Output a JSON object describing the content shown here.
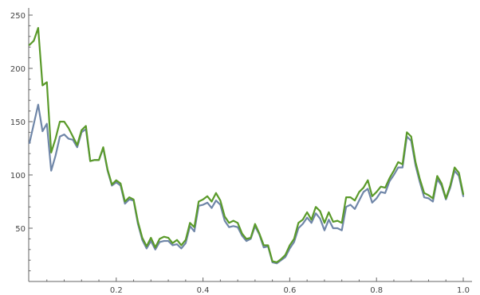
{
  "chart_data": {
    "type": "line",
    "title": "",
    "xlabel": "",
    "ylabel": "",
    "xlim": [
      0,
      1.0
    ],
    "ylim": [
      0,
      250
    ],
    "x_ticks": [
      0.2,
      0.4,
      0.6,
      0.8,
      1.0
    ],
    "x_tick_labels": [
      "0.2",
      "0.4",
      "0.6",
      "0.8",
      "1.0"
    ],
    "y_ticks": [
      50,
      100,
      150,
      200,
      250
    ],
    "y_tick_labels": [
      "50",
      "100",
      "150",
      "200",
      "250"
    ],
    "grid": false,
    "legend": "none",
    "x": [
      0.0,
      0.01,
      0.02,
      0.03,
      0.04,
      0.05,
      0.06,
      0.07,
      0.08,
      0.09,
      0.1,
      0.11,
      0.12,
      0.13,
      0.14,
      0.15,
      0.16,
      0.17,
      0.18,
      0.19,
      0.2,
      0.21,
      0.22,
      0.23,
      0.24,
      0.25,
      0.26,
      0.27,
      0.28,
      0.29,
      0.3,
      0.31,
      0.32,
      0.33,
      0.34,
      0.35,
      0.36,
      0.37,
      0.38,
      0.39,
      0.4,
      0.41,
      0.42,
      0.43,
      0.44,
      0.45,
      0.46,
      0.47,
      0.48,
      0.49,
      0.5,
      0.51,
      0.52,
      0.53,
      0.54,
      0.55,
      0.56,
      0.57,
      0.58,
      0.59,
      0.6,
      0.61,
      0.62,
      0.63,
      0.64,
      0.65,
      0.66,
      0.67,
      0.68,
      0.69,
      0.7,
      0.71,
      0.72,
      0.73,
      0.74,
      0.75,
      0.76,
      0.77,
      0.78,
      0.79,
      0.8,
      0.81,
      0.82,
      0.83,
      0.84,
      0.85,
      0.86,
      0.87,
      0.88,
      0.89,
      0.9,
      0.91,
      0.92,
      0.93,
      0.94,
      0.95,
      0.96,
      0.97,
      0.98,
      0.99,
      1.0
    ],
    "series": [
      {
        "color": "#6f86a8",
        "values": [
          130,
          148,
          166,
          141,
          148,
          104,
          118,
          136,
          138,
          134,
          133,
          126,
          140,
          143,
          113,
          114,
          114,
          125,
          104,
          90,
          93,
          90,
          73,
          77,
          76,
          54,
          39,
          31,
          38,
          30,
          37,
          38,
          38,
          34,
          35,
          31,
          36,
          52,
          47,
          71,
          72,
          74,
          69,
          76,
          72,
          57,
          51,
          52,
          51,
          43,
          38,
          40,
          52,
          44,
          32,
          33,
          18,
          17,
          20,
          23,
          31,
          37,
          50,
          54,
          60,
          55,
          64,
          59,
          48,
          58,
          50,
          50,
          48,
          70,
          72,
          68,
          76,
          84,
          87,
          74,
          78,
          84,
          83,
          94,
          100,
          107,
          107,
          136,
          132,
          109,
          93,
          79,
          78,
          75,
          96,
          90,
          77,
          88,
          104,
          99,
          80
        ]
      },
      {
        "color": "#5a9a2a",
        "values": [
          222,
          226,
          238,
          184,
          187,
          121,
          134,
          150,
          150,
          144,
          136,
          128,
          142,
          146,
          113,
          114,
          114,
          126,
          105,
          91,
          95,
          92,
          75,
          79,
          77,
          56,
          41,
          33,
          41,
          32,
          40,
          42,
          41,
          36,
          39,
          34,
          39,
          55,
          51,
          75,
          77,
          80,
          75,
          83,
          76,
          61,
          55,
          57,
          55,
          45,
          40,
          41,
          54,
          45,
          34,
          34,
          19,
          18,
          21,
          25,
          34,
          40,
          55,
          58,
          65,
          58,
          70,
          66,
          55,
          65,
          56,
          57,
          55,
          79,
          79,
          76,
          84,
          88,
          95,
          80,
          84,
          89,
          88,
          97,
          104,
          112,
          110,
          140,
          136,
          112,
          96,
          83,
          81,
          78,
          99,
          92,
          78,
          90,
          107,
          102,
          82
        ]
      }
    ]
  }
}
